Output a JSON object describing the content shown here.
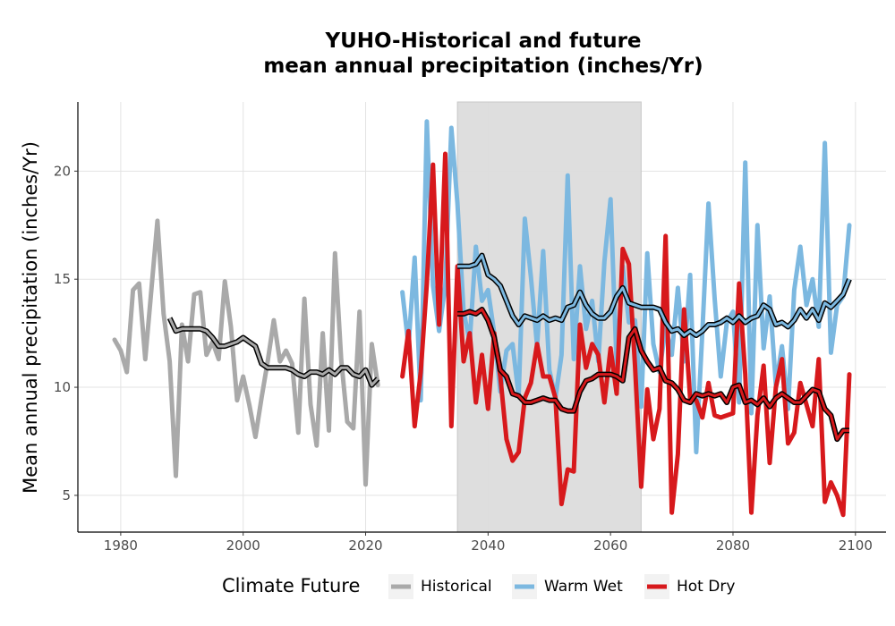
{
  "chart_data": {
    "type": "line",
    "title_line1": "YUHO-Historical and future",
    "title_line2": "mean annual precipitation (inches/Yr)",
    "xlabel": "",
    "ylabel": "Mean annual precipitation (inches/Yr)",
    "xlim": [
      1973,
      2105
    ],
    "ylim": [
      3.3,
      23.2
    ],
    "x_ticks": [
      1980,
      2000,
      2020,
      2040,
      2060,
      2080,
      2100
    ],
    "y_ticks": [
      5,
      10,
      15,
      20
    ],
    "grid": true,
    "shaded_period": [
      2035,
      2065
    ],
    "legend": {
      "title": "Climate Future",
      "position": "bottom",
      "items": [
        "Historical",
        "Warm Wet",
        "Hot Dry"
      ]
    },
    "colors": {
      "historical": "#a9a9a9",
      "warm_wet": "#7cb8e0",
      "hot_dry": "#d7191c",
      "smooth": "#000000",
      "shade": "#dcdcdc"
    },
    "series": [
      {
        "name": "Historical",
        "x": [
          1979,
          1980,
          1981,
          1982,
          1983,
          1984,
          1985,
          1986,
          1987,
          1988,
          1989,
          1990,
          1991,
          1992,
          1993,
          1994,
          1995,
          1996,
          1997,
          1998,
          1999,
          2000,
          2001,
          2002,
          2003,
          2004,
          2005,
          2006,
          2007,
          2008,
          2009,
          2010,
          2011,
          2012,
          2013,
          2014,
          2015,
          2016,
          2017,
          2018,
          2019,
          2020,
          2021,
          2022
        ],
        "values": [
          12.2,
          11.7,
          10.7,
          14.5,
          14.8,
          11.3,
          14.5,
          17.7,
          13.4,
          11.2,
          5.9,
          12.9,
          11.2,
          14.3,
          14.4,
          11.5,
          12.1,
          11.3,
          14.9,
          12.8,
          9.4,
          10.5,
          9.2,
          7.7,
          9.5,
          11.2,
          13.1,
          11.2,
          11.7,
          11.1,
          7.9,
          14.1,
          9.2,
          7.3,
          12.5,
          8.0,
          16.2,
          11.3,
          8.4,
          8.1,
          13.5,
          5.5,
          12.0,
          10.1
        ]
      },
      {
        "name": "Historical rolling mean",
        "x": [
          1988,
          1989,
          1990,
          1991,
          1992,
          1993,
          1994,
          1995,
          1996,
          1997,
          1998,
          1999,
          2000,
          2001,
          2002,
          2003,
          2004,
          2005,
          2006,
          2007,
          2008,
          2009,
          2010,
          2011,
          2012,
          2013,
          2014,
          2015,
          2016,
          2017,
          2018,
          2019,
          2020,
          2021,
          2022
        ],
        "values": [
          13.2,
          12.6,
          12.7,
          12.7,
          12.7,
          12.7,
          12.6,
          12.3,
          11.9,
          11.9,
          12.0,
          12.1,
          12.3,
          12.1,
          11.9,
          11.1,
          10.9,
          10.9,
          10.9,
          10.9,
          10.8,
          10.6,
          10.5,
          10.7,
          10.7,
          10.6,
          10.8,
          10.6,
          10.9,
          10.9,
          10.6,
          10.5,
          10.8,
          10.1,
          10.4
        ]
      },
      {
        "name": "Warm Wet",
        "x": [
          2026,
          2027,
          2028,
          2029,
          2030,
          2031,
          2032,
          2033,
          2034,
          2035,
          2036,
          2037,
          2038,
          2039,
          2040,
          2041,
          2042,
          2043,
          2044,
          2045,
          2046,
          2047,
          2048,
          2049,
          2050,
          2051,
          2052,
          2053,
          2054,
          2055,
          2056,
          2057,
          2058,
          2059,
          2060,
          2061,
          2062,
          2063,
          2064,
          2065,
          2066,
          2067,
          2068,
          2069,
          2070,
          2071,
          2072,
          2073,
          2074,
          2075,
          2076,
          2077,
          2078,
          2079,
          2080,
          2081,
          2082,
          2083,
          2084,
          2085,
          2086,
          2087,
          2088,
          2089,
          2090,
          2091,
          2092,
          2093,
          2094,
          2095,
          2096,
          2097,
          2098,
          2099
        ],
        "values": [
          14.4,
          11.9,
          16.0,
          9.4,
          22.3,
          14.7,
          12.6,
          14.7,
          22.0,
          18.5,
          13.5,
          12.1,
          16.5,
          14.0,
          14.5,
          12.5,
          9.8,
          11.7,
          12.0,
          9.6,
          17.8,
          15.1,
          11.9,
          16.3,
          10.8,
          9.5,
          11.5,
          19.8,
          11.3,
          15.6,
          12.7,
          14.0,
          11.2,
          15.8,
          18.7,
          11.0,
          15.6,
          13.0,
          13.1,
          9.1,
          16.2,
          12.0,
          10.7,
          12.8,
          11.5,
          14.6,
          11.2,
          15.2,
          7.0,
          12.6,
          18.5,
          14.1,
          10.5,
          13.0,
          13.5,
          9.3,
          20.4,
          8.8,
          17.5,
          11.8,
          14.2,
          10.1,
          11.9,
          9.0,
          14.5,
          16.5,
          13.8,
          15.0,
          12.8,
          21.3,
          11.6,
          13.8,
          14.2,
          17.5
        ]
      },
      {
        "name": "Warm Wet rolling mean",
        "x": [
          2035,
          2036,
          2037,
          2038,
          2039,
          2040,
          2041,
          2042,
          2043,
          2044,
          2045,
          2046,
          2047,
          2048,
          2049,
          2050,
          2051,
          2052,
          2053,
          2054,
          2055,
          2056,
          2057,
          2058,
          2059,
          2060,
          2061,
          2062,
          2063,
          2064,
          2065,
          2066,
          2067,
          2068,
          2069,
          2070,
          2071,
          2072,
          2073,
          2074,
          2075,
          2076,
          2077,
          2078,
          2079,
          2080,
          2081,
          2082,
          2083,
          2084,
          2085,
          2086,
          2087,
          2088,
          2089,
          2090,
          2091,
          2092,
          2093,
          2094,
          2095,
          2096,
          2097,
          2098,
          2099
        ],
        "values": [
          15.6,
          15.6,
          15.6,
          15.7,
          16.1,
          15.2,
          15.0,
          14.7,
          14.0,
          13.3,
          12.9,
          13.3,
          13.2,
          13.1,
          13.3,
          13.1,
          13.2,
          13.1,
          13.7,
          13.8,
          14.4,
          13.8,
          13.4,
          13.2,
          13.2,
          13.5,
          14.2,
          14.6,
          13.9,
          13.8,
          13.7,
          13.7,
          13.7,
          13.6,
          13.0,
          12.6,
          12.7,
          12.4,
          12.6,
          12.4,
          12.6,
          12.9,
          12.9,
          13.0,
          13.2,
          13.0,
          13.3,
          13.0,
          13.2,
          13.3,
          13.8,
          13.6,
          12.9,
          13.0,
          12.8,
          13.1,
          13.6,
          13.2,
          13.6,
          13.1,
          13.9,
          13.7,
          14.0,
          14.3,
          15.0
        ]
      },
      {
        "name": "Hot Dry",
        "x": [
          2026,
          2027,
          2028,
          2029,
          2030,
          2031,
          2032,
          2033,
          2034,
          2035,
          2036,
          2037,
          2038,
          2039,
          2040,
          2041,
          2042,
          2043,
          2044,
          2045,
          2046,
          2047,
          2048,
          2049,
          2050,
          2051,
          2052,
          2053,
          2054,
          2055,
          2056,
          2057,
          2058,
          2059,
          2060,
          2061,
          2062,
          2063,
          2064,
          2065,
          2066,
          2067,
          2068,
          2069,
          2070,
          2071,
          2072,
          2073,
          2074,
          2075,
          2076,
          2077,
          2078,
          2079,
          2080,
          2081,
          2082,
          2083,
          2084,
          2085,
          2086,
          2087,
          2088,
          2089,
          2090,
          2091,
          2092,
          2093,
          2094,
          2095,
          2096,
          2097,
          2098,
          2099
        ],
        "values": [
          10.5,
          12.6,
          8.2,
          10.7,
          14.8,
          20.3,
          12.9,
          20.8,
          8.2,
          15.6,
          11.2,
          12.5,
          9.3,
          11.5,
          9.0,
          12.5,
          10.5,
          7.6,
          6.6,
          7.0,
          9.5,
          10.2,
          12.0,
          10.5,
          10.5,
          9.5,
          4.6,
          6.2,
          6.1,
          12.9,
          10.9,
          12.0,
          11.5,
          9.3,
          11.8,
          9.7,
          16.4,
          15.7,
          11.0,
          5.4,
          9.9,
          7.6,
          9.0,
          17.0,
          4.2,
          6.9,
          13.6,
          9.5,
          9.4,
          8.6,
          10.2,
          8.7,
          8.6,
          8.7,
          8.8,
          14.8,
          10.6,
          4.2,
          8.7,
          11.0,
          6.5,
          10.0,
          11.3,
          7.4,
          7.9,
          10.2,
          9.2,
          8.2,
          11.3,
          4.7,
          5.6,
          5.0,
          4.1,
          10.6
        ]
      },
      {
        "name": "Hot Dry rolling mean",
        "x": [
          2035,
          2036,
          2037,
          2038,
          2039,
          2040,
          2041,
          2042,
          2043,
          2044,
          2045,
          2046,
          2047,
          2048,
          2049,
          2050,
          2051,
          2052,
          2053,
          2054,
          2055,
          2056,
          2057,
          2058,
          2059,
          2060,
          2061,
          2062,
          2063,
          2064,
          2065,
          2066,
          2067,
          2068,
          2069,
          2070,
          2071,
          2072,
          2073,
          2074,
          2075,
          2076,
          2077,
          2078,
          2079,
          2080,
          2081,
          2082,
          2083,
          2084,
          2085,
          2086,
          2087,
          2088,
          2089,
          2090,
          2091,
          2092,
          2093,
          2094,
          2095,
          2096,
          2097,
          2098,
          2099
        ],
        "values": [
          13.4,
          13.4,
          13.5,
          13.4,
          13.6,
          13.1,
          12.3,
          10.8,
          10.5,
          9.7,
          9.6,
          9.3,
          9.3,
          9.4,
          9.5,
          9.4,
          9.4,
          9.0,
          8.9,
          8.9,
          9.8,
          10.3,
          10.4,
          10.6,
          10.6,
          10.6,
          10.5,
          10.3,
          12.3,
          12.7,
          11.7,
          11.2,
          10.8,
          10.9,
          10.3,
          10.2,
          9.9,
          9.4,
          9.3,
          9.7,
          9.6,
          9.7,
          9.6,
          9.7,
          9.3,
          10.0,
          10.1,
          9.3,
          9.4,
          9.2,
          9.5,
          9.1,
          9.5,
          9.7,
          9.5,
          9.3,
          9.3,
          9.6,
          9.9,
          9.8,
          9.0,
          8.7,
          7.6,
          8.0,
          8.0
        ]
      }
    ]
  }
}
